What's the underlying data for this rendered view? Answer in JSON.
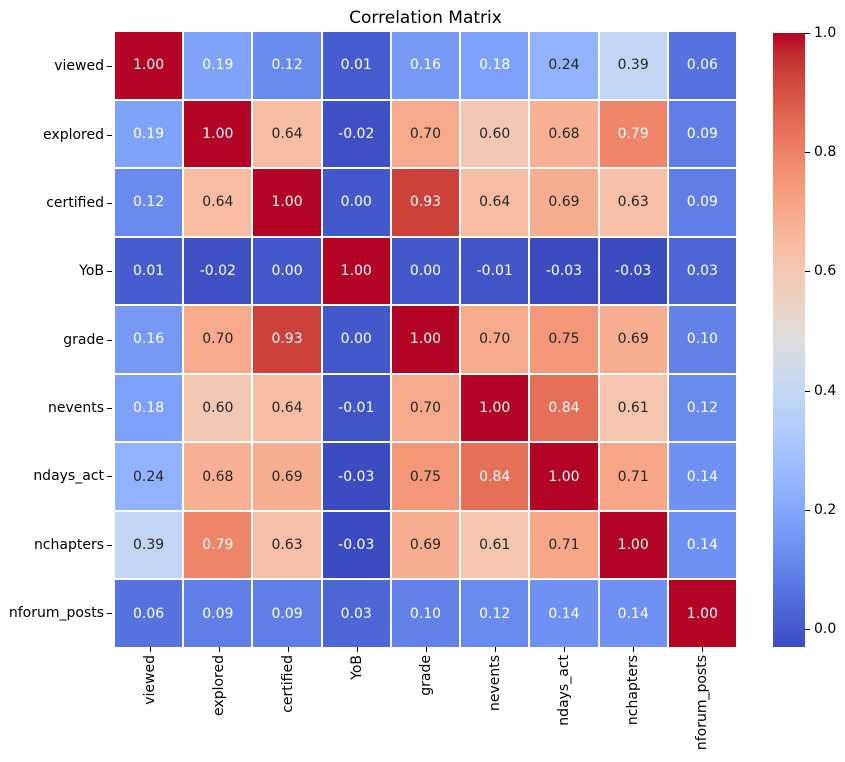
{
  "chart_data": {
    "type": "heatmap",
    "title": "Correlation Matrix",
    "categories": [
      "viewed",
      "explored",
      "certified",
      "YoB",
      "grade",
      "nevents",
      "ndays_act",
      "nchapters",
      "nforum_posts"
    ],
    "matrix": [
      [
        1.0,
        0.19,
        0.12,
        0.01,
        0.16,
        0.18,
        0.24,
        0.39,
        0.06
      ],
      [
        0.19,
        1.0,
        0.64,
        -0.02,
        0.7,
        0.6,
        0.68,
        0.79,
        0.09
      ],
      [
        0.12,
        0.64,
        1.0,
        0.0,
        0.93,
        0.64,
        0.69,
        0.63,
        0.09
      ],
      [
        0.01,
        -0.02,
        0.0,
        1.0,
        0.0,
        -0.01,
        -0.03,
        -0.03,
        0.03
      ],
      [
        0.16,
        0.7,
        0.93,
        0.0,
        1.0,
        0.7,
        0.75,
        0.69,
        0.1
      ],
      [
        0.18,
        0.6,
        0.64,
        -0.01,
        0.7,
        1.0,
        0.84,
        0.61,
        0.12
      ],
      [
        0.24,
        0.68,
        0.69,
        -0.03,
        0.75,
        0.84,
        1.0,
        0.71,
        0.14
      ],
      [
        0.39,
        0.79,
        0.63,
        -0.03,
        0.69,
        0.61,
        0.71,
        1.0,
        0.14
      ],
      [
        0.06,
        0.09,
        0.09,
        0.03,
        0.1,
        0.12,
        0.14,
        0.14,
        1.0
      ]
    ],
    "colormap": "coolwarm",
    "vmin": -0.03,
    "vmax": 1.0,
    "annot_format": "0.00",
    "annot_light_color": "#ffffff",
    "annot_dark_color": "#262626",
    "cell_gap_color": "#ffffff",
    "grid": "off",
    "legend_position": "colorbar-right",
    "colorbar_ticks": [
      {
        "value": 0.0,
        "label": "0.0"
      },
      {
        "value": 0.2,
        "label": "0.2"
      },
      {
        "value": 0.4,
        "label": "0.4"
      },
      {
        "value": 0.6,
        "label": "0.6"
      },
      {
        "value": 0.8,
        "label": "0.8"
      },
      {
        "value": 1.0,
        "label": "1.0"
      }
    ]
  }
}
